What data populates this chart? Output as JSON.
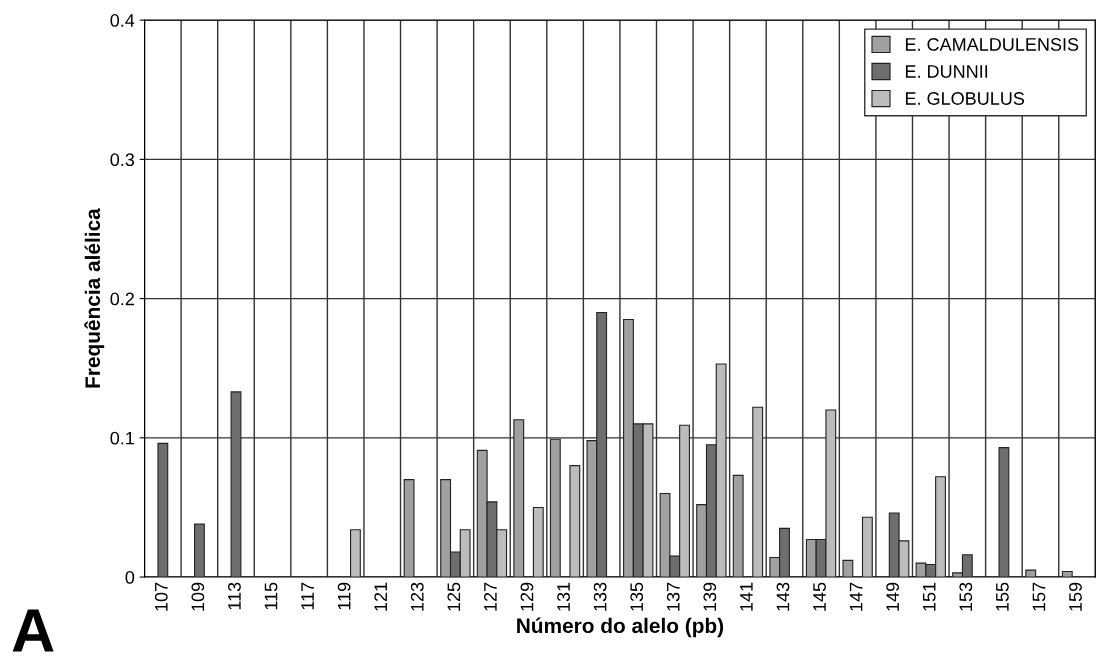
{
  "chart_data": {
    "type": "bar",
    "xlabel": "Número do alelo (pb)",
    "ylabel": "Frequência alélica",
    "categories": [
      "107",
      "109",
      "113",
      "115",
      "117",
      "119",
      "121",
      "123",
      "125",
      "127",
      "129",
      "131",
      "133",
      "135",
      "137",
      "139",
      "141",
      "143",
      "145",
      "147",
      "149",
      "151",
      "153",
      "155",
      "157",
      "159"
    ],
    "series": [
      {
        "name": "E. CAMALDULENSIS",
        "color": "#a0a0a0",
        "values": [
          null,
          null,
          null,
          null,
          null,
          null,
          null,
          0.07,
          0.07,
          0.091,
          0.113,
          0.099,
          0.098,
          0.185,
          0.06,
          0.052,
          0.073,
          0.014,
          0.027,
          0.012,
          null,
          0.01,
          0.003,
          null,
          0.005,
          0.004
        ]
      },
      {
        "name": "E. DUNNII",
        "color": "#6e6e6e",
        "values": [
          0.096,
          0.038,
          0.133,
          null,
          null,
          null,
          null,
          null,
          0.018,
          0.054,
          null,
          null,
          0.19,
          0.11,
          0.015,
          0.095,
          null,
          0.035,
          0.027,
          null,
          0.046,
          0.009,
          0.016,
          0.093,
          null,
          null
        ]
      },
      {
        "name": "E. GLOBULUS",
        "color": "#bcbcbc",
        "values": [
          null,
          null,
          null,
          null,
          null,
          0.034,
          null,
          null,
          0.034,
          0.034,
          0.05,
          0.08,
          null,
          0.11,
          0.109,
          0.153,
          0.122,
          null,
          0.12,
          0.043,
          0.026,
          0.072,
          null,
          null,
          null,
          null
        ]
      }
    ],
    "ylim": [
      0,
      0.4
    ],
    "yticks": [
      0,
      0.1,
      0.2,
      0.3,
      0.4
    ],
    "grid": true,
    "legend": "top right",
    "annotations": [
      "A"
    ]
  }
}
